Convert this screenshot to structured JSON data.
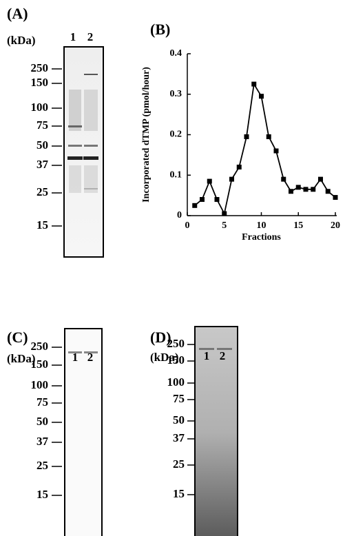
{
  "panels": [
    {
      "label": "(A)",
      "unit": "(kDa)",
      "lanes": [
        "1",
        "2"
      ],
      "markers": [
        250,
        150,
        100,
        75,
        50,
        37,
        25,
        15
      ]
    },
    {
      "label": "(C)",
      "unit": "(kDa)",
      "lanes": [
        "1",
        "2"
      ],
      "markers": [
        250,
        150,
        100,
        75,
        50,
        37,
        25,
        15
      ]
    },
    {
      "label": "(D)",
      "unit": "(kDa)",
      "lanes": [
        "1",
        "2"
      ],
      "markers": [
        250,
        150,
        100,
        75,
        50,
        37,
        25,
        15
      ]
    }
  ],
  "chart_data": {
    "type": "line",
    "label": "(B)",
    "x_label": "Fractions",
    "y_label": "Incorporated dTMP (pmol/hour)",
    "x": [
      1,
      2,
      3,
      4,
      5,
      6,
      7,
      8,
      9,
      10,
      11,
      12,
      13,
      14,
      15,
      16,
      17,
      18,
      19,
      20
    ],
    "values": [
      0.025,
      0.04,
      0.085,
      0.04,
      0.005,
      0.09,
      0.12,
      0.195,
      0.325,
      0.295,
      0.195,
      0.16,
      0.09,
      0.06,
      0.07,
      0.065,
      0.065,
      0.09,
      0.06,
      0.045
    ],
    "color": "#000000",
    "marker": "square",
    "xlim": [
      0,
      20
    ],
    "xticks": [
      0,
      5,
      10,
      15,
      20
    ],
    "ylim": [
      0,
      0.4
    ],
    "yticks": [
      0,
      0.1,
      0.2,
      0.3,
      0.4
    ]
  }
}
